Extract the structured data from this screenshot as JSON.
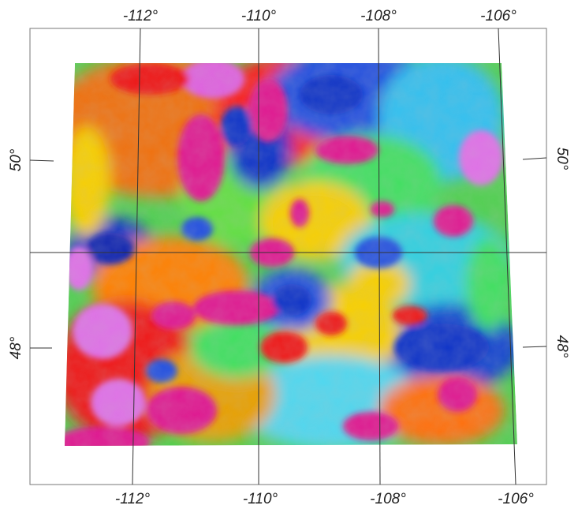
{
  "map": {
    "lon_labels_top": [
      "-112°",
      "-110°",
      "-108°",
      "-106°"
    ],
    "lon_labels_bottom": [
      "-112°",
      "-110°",
      "-108°",
      "-106°"
    ],
    "lat_labels_left": [
      "50°",
      "48°"
    ],
    "lat_labels_right": [
      "50°",
      "48°"
    ],
    "colormap": [
      "#1030c8",
      "#00a0ff",
      "#30e0f0",
      "#40e060",
      "#c8f020",
      "#f8d000",
      "#ff8000",
      "#f01818",
      "#e01890",
      "#e070e8"
    ]
  }
}
